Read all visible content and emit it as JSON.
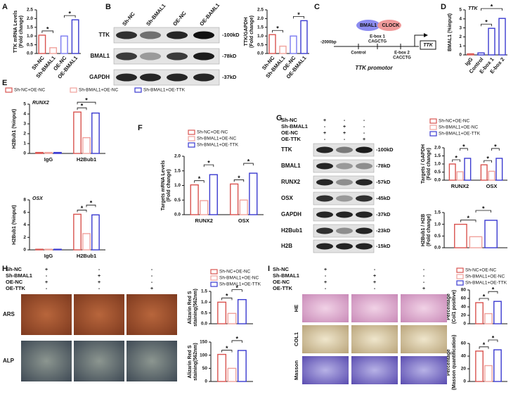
{
  "panel_labels": [
    "A",
    "B",
    "C",
    "D",
    "E",
    "F",
    "G",
    "H",
    "I"
  ],
  "chart_data": [
    {
      "type": "bar",
      "ylabel": [
        "TTK mRNA Levels",
        "(Fold change)"
      ],
      "categories": [
        "Sh-NC",
        "Sh-BMAL1",
        "OE-NC",
        "OE-BMAL1"
      ],
      "values": [
        1.05,
        0.33,
        1.0,
        1.93
      ],
      "colors": [
        "#d9534f",
        "#f0a29c",
        "#7b7bf0",
        "#3a3ad0"
      ],
      "ylim": [
        0,
        2.5
      ],
      "yticks": [
        {
          "value": 0,
          "label": "0.0"
        },
        0.5,
        {
          "value": 1,
          "label": "1.0"
        },
        1.5,
        {
          "value": 2,
          "label": "2.0"
        },
        2.5
      ],
      "xtick_rotation": -50,
      "annotations": [
        "*",
        "*"
      ]
    },
    {
      "type": "bar",
      "ylabel": [
        "TTK/GAPDH",
        "(Fold change)"
      ],
      "categories": [
        "Sh-NC",
        "Sh-BMAL1",
        "OE-NC",
        "OE-BMAL1"
      ],
      "values": [
        1.08,
        0.42,
        1.0,
        1.88
      ],
      "colors": [
        "#d9534f",
        "#f0a29c",
        "#7b7bf0",
        "#3a3ad0"
      ],
      "ylim": [
        0,
        2.5
      ],
      "yticks": [
        {
          "value": 0,
          "label": "0.0"
        },
        0.5,
        {
          "value": 1,
          "label": "1.0"
        },
        1.5,
        {
          "value": 2,
          "label": "2.0"
        },
        2.5
      ],
      "xtick_rotation": -50,
      "annotations": [
        "*",
        "*"
      ]
    },
    {
      "type": "bar",
      "note": "TTK",
      "ylabel": [
        "BMAL1 (%input)"
      ],
      "categories": [
        "IgG",
        "Control",
        "E-box 1",
        "E-box 2"
      ],
      "values": [
        0.12,
        0.22,
        2.95,
        4.05
      ],
      "colors": [
        "#d9534f",
        "#3a3ad0",
        "#3a3ad0",
        "#3a3ad0"
      ],
      "ylim": [
        0,
        5
      ],
      "yticks": [
        0,
        1,
        2,
        3,
        4,
        5
      ],
      "xtick_rotation": -50,
      "annotations": [
        "*",
        "*"
      ]
    },
    {
      "type": "bar",
      "note": "RUNX2",
      "ylabel": [
        "H2Bub1 (%input)"
      ],
      "categories": [
        "IgG",
        "H2Bub1"
      ],
      "series": [
        {
          "name": "Sh-NC+OE-NC",
          "color": "#d9534f",
          "values": [
            0.1,
            4.2
          ]
        },
        {
          "name": "Sh-BMAL1+OE-NC",
          "color": "#f0a29c",
          "values": [
            0.1,
            1.6
          ]
        },
        {
          "name": "Sh-BMAL1+OE-TTK",
          "color": "#3a3ad0",
          "values": [
            0.1,
            4.1
          ]
        }
      ],
      "legend": "top",
      "ylim": [
        0,
        5
      ],
      "yticks": [
        0,
        1,
        2,
        3,
        4,
        5
      ],
      "annotations": [
        "*",
        "*"
      ]
    },
    {
      "type": "bar",
      "note": "OSX",
      "ylabel": [
        "H2Bub1 (%input)"
      ],
      "categories": [
        "IgG",
        "H2Bub1"
      ],
      "series": [
        {
          "color": "#d9534f",
          "values": [
            0.1,
            5.7
          ]
        },
        {
          "color": "#f0a29c",
          "values": [
            0.1,
            2.6
          ]
        },
        {
          "color": "#3a3ad0",
          "values": [
            0.1,
            5.6
          ]
        }
      ],
      "ylim": [
        0,
        8
      ],
      "yticks": [
        0,
        2,
        4,
        6,
        8
      ],
      "annotations": [
        "*",
        "*"
      ]
    },
    {
      "type": "bar",
      "ylabel": [
        "Targets mRNA Levels",
        "(Fold change)"
      ],
      "categories": [
        "RUNX2",
        "OSX"
      ],
      "series": [
        {
          "name": "Sh-NC+OE-NC",
          "color": "#d9534f",
          "values": [
            1.02,
            1.05
          ]
        },
        {
          "name": "Sh-BMAL1+OE-NC",
          "color": "#f0a29c",
          "values": [
            0.48,
            0.5
          ]
        },
        {
          "name": "Sh-BMAL1+OE-TTK",
          "color": "#3a3ad0",
          "values": [
            1.37,
            1.42
          ]
        }
      ],
      "legend": "top-left",
      "ylim": [
        0,
        2
      ],
      "yticks": [
        {
          "value": 0,
          "label": "0.0"
        },
        0.5,
        {
          "value": 1,
          "label": "1.0"
        },
        1.5,
        {
          "value": 2,
          "label": "2.0"
        }
      ],
      "annotations": [
        "*",
        "*",
        "*",
        "*"
      ]
    },
    {
      "type": "bar",
      "ylabel": [
        "Targets / GAPDH",
        "(Fold change)"
      ],
      "categories": [
        "RUNX2",
        "OSX"
      ],
      "series": [
        {
          "name": "Sh-NC+OE-NC",
          "color": "#d9534f",
          "values": [
            1.0,
            0.95
          ]
        },
        {
          "name": "Sh-BMAL1+OE-NC",
          "color": "#f0a29c",
          "values": [
            0.52,
            0.55
          ]
        },
        {
          "name": "Sh-BMAL1+OE-TTK",
          "color": "#3a3ad0",
          "values": [
            1.35,
            1.35
          ]
        }
      ],
      "legend": "top",
      "ylim": [
        0,
        2
      ],
      "yticks": [
        {
          "value": 0,
          "label": "0.0"
        },
        0.5,
        {
          "value": 1,
          "label": "1.0"
        },
        1.5,
        {
          "value": 2,
          "label": "2.0"
        }
      ],
      "annotations": [
        "*",
        "*",
        "*",
        "*"
      ]
    },
    {
      "type": "bar",
      "ylabel": [
        "H2Bub1 / H2B",
        "(Fold change)"
      ],
      "series": [
        {
          "color": "#d9534f",
          "values": [
            1.0
          ]
        },
        {
          "color": "#f0a29c",
          "values": [
            0.47
          ]
        },
        {
          "color": "#3a3ad0",
          "values": [
            1.17
          ]
        }
      ],
      "ylim": [
        0,
        1.5
      ],
      "yticks": [
        {
          "value": 0,
          "label": "0.0"
        },
        0.5,
        {
          "value": 1,
          "label": "1.0"
        },
        1.5
      ],
      "annotations": [
        "*",
        "*"
      ]
    },
    {
      "type": "bar",
      "ylabel": [
        "Alizarin Red S",
        "staining(562nm)"
      ],
      "series": [
        {
          "name": "Sh-NC+OE-NC",
          "color": "#d9534f",
          "values": [
            1.0
          ]
        },
        {
          "name": "Sh-BMAL1+OE-NC",
          "color": "#f0a29c",
          "values": [
            0.48
          ]
        },
        {
          "name": "Sh-BMAL1+OE-TTK",
          "color": "#3a3ad0",
          "values": [
            1.12
          ]
        }
      ],
      "legend": "top",
      "ylim": [
        0,
        1.5
      ],
      "yticks": [
        {
          "value": 0,
          "label": "0.0"
        },
        0.5,
        {
          "value": 1,
          "label": "1.0"
        },
        1.5
      ],
      "annotations": [
        "*",
        "*"
      ]
    },
    {
      "type": "bar",
      "ylabel": [
        "Alizarin Red S",
        "staining(562nm)"
      ],
      "series": [
        {
          "color": "#d9534f",
          "values": [
            103
          ]
        },
        {
          "color": "#f0a29c",
          "values": [
            50
          ]
        },
        {
          "color": "#3a3ad0",
          "values": [
            118
          ]
        }
      ],
      "ylim": [
        0,
        150
      ],
      "yticks": [
        0,
        50,
        100,
        150
      ],
      "annotations": [
        "*",
        "*"
      ]
    },
    {
      "type": "bar",
      "ylabel": [
        "Percentage",
        "(Col1 positive)"
      ],
      "series": [
        {
          "name": "Sh-NC+OE-NC",
          "color": "#d9534f",
          "values": [
            50
          ]
        },
        {
          "name": "Sh-BMAL1+OE-NC",
          "color": "#f0a29c",
          "values": [
            24
          ]
        },
        {
          "name": "Sh-BMAL1+OE-TTK",
          "color": "#3a3ad0",
          "values": [
            53
          ]
        }
      ],
      "legend": "top",
      "ylim": [
        0,
        80
      ],
      "yticks": [
        0,
        20,
        40,
        60,
        80
      ],
      "annotations": [
        "*",
        "*"
      ]
    },
    {
      "type": "bar",
      "ylabel": [
        "Percentage",
        "(Masson quantification)"
      ],
      "series": [
        {
          "color": "#d9534f",
          "values": [
            48
          ]
        },
        {
          "color": "#f0a29c",
          "values": [
            25
          ]
        },
        {
          "color": "#3a3ad0",
          "values": [
            50
          ]
        }
      ],
      "ylim": [
        0,
        60
      ],
      "yticks": [
        0,
        20,
        40,
        60
      ],
      "annotations": [
        "*",
        "*"
      ]
    }
  ],
  "blot_b": {
    "columns": [
      "Sh-NC",
      "Sh-BMAL1",
      "OE-NC",
      "OE-BAML1"
    ],
    "rows": [
      {
        "label": "TTK",
        "size": "-100kD"
      },
      {
        "label": "BMAL1",
        "size": "-78kD"
      },
      {
        "label": "GAPDH",
        "size": "-37kD"
      }
    ]
  },
  "promoter_diagram": {
    "bmal1": "BMAL1",
    "clock": "CLOCK",
    "ebox1": "E-box 1",
    "ebox1_seq": "CAGCTG",
    "start": "-2000bp",
    "control": "Control",
    "ebox2": "E-box 2",
    "ebox2_seq": "CACCTG",
    "gene": "TTK",
    "caption": "TTK promotor"
  },
  "blot_g": {
    "conditions": [
      {
        "label": "Sh-NC",
        "signs": [
          "+",
          "-",
          "-"
        ]
      },
      {
        "label": "Sh-BMAL1",
        "signs": [
          "-",
          "+",
          "-"
        ]
      },
      {
        "label": "OE-NC",
        "signs": [
          "+",
          "+",
          "-"
        ]
      },
      {
        "label": "OE-TTK",
        "signs": [
          "-",
          "-",
          "+"
        ]
      }
    ],
    "rows": [
      {
        "label": "TTK",
        "size": "-100kD"
      },
      {
        "label": "BMAL1",
        "size": "-78kD"
      },
      {
        "label": "RUNX2",
        "size": "-57kD"
      },
      {
        "label": "OSX",
        "size": "-45kD"
      },
      {
        "label": "GAPDH",
        "size": "-37kD"
      },
      {
        "label": "H2Bub1",
        "size": "-23kD"
      },
      {
        "label": "H2B",
        "size": "-15kD"
      }
    ]
  },
  "staining_h": {
    "conditions": [
      {
        "label": "Sh-NC",
        "signs": [
          "+",
          "-",
          "-"
        ]
      },
      {
        "label": "Sh-BMAL1",
        "signs": [
          "-",
          "+",
          "-"
        ]
      },
      {
        "label": "OE-NC",
        "signs": [
          "+",
          "+",
          "-"
        ]
      },
      {
        "label": "OE-TTK",
        "signs": [
          "-",
          "-",
          "+"
        ]
      }
    ],
    "rows": [
      "ARS",
      "ALP"
    ]
  },
  "staining_i": {
    "conditions": [
      {
        "label": "Sh-NC",
        "signs": [
          "+",
          "-",
          "-"
        ]
      },
      {
        "label": "Sh-BMAL1",
        "signs": [
          "-",
          "+",
          "-"
        ]
      },
      {
        "label": "OE-NC",
        "signs": [
          "+",
          "+",
          "-"
        ]
      },
      {
        "label": "OE-TTK",
        "signs": [
          "-",
          "-",
          "+"
        ]
      }
    ],
    "rows": [
      "HE",
      "COL1",
      "Masson"
    ]
  }
}
